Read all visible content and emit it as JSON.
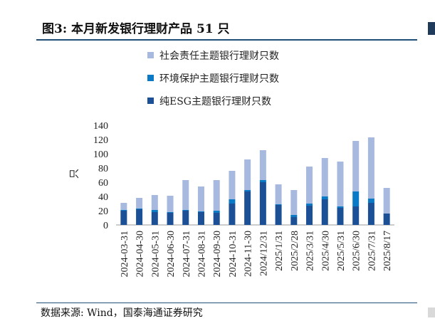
{
  "title": "图3: 本月新发银行理财产品 51 只",
  "source": "数据来源: Wind，国泰海通证券研究",
  "colors": {
    "social": "#a7b9de",
    "environment": "#0a7ac6",
    "esg": "#1b4f96",
    "rule": "#1f4e79"
  },
  "chart_data": {
    "type": "bar",
    "stacked": true,
    "ylabel": "只",
    "ylim": [
      0,
      140
    ],
    "yticks": [
      0,
      20,
      40,
      60,
      80,
      100,
      120,
      140
    ],
    "legend_position": "top",
    "categories": [
      "2024-03-31",
      "2024-04-30",
      "2024-05-31",
      "2024-06-30",
      "2024-07-31",
      "2024-08-31",
      "2024-09-30",
      "2024-10-31",
      "2024-11-30",
      "2024/12/31",
      "2025/1/31",
      "2025/2/28",
      "2025/3/31",
      "2025/4/30",
      "2025/5/31",
      "2025/6/30",
      "2025/7/31",
      "2025/8/17"
    ],
    "series": [
      {
        "name": "纯ESG主题银行理财只数",
        "color_key": "esg",
        "values": [
          20,
          22,
          18,
          17,
          20,
          18,
          17,
          30,
          47,
          60,
          28,
          11,
          27,
          36,
          24,
          26,
          31,
          16
        ]
      },
      {
        "name": "环境保护主题银行理财只数",
        "color_key": "environment",
        "values": [
          1,
          1,
          3,
          1,
          1,
          1,
          3,
          6,
          2,
          3,
          1,
          3,
          3,
          4,
          2,
          21,
          6,
          0
        ]
      },
      {
        "name": "社会责任主题银行理财只数",
        "color_key": "social",
        "values": [
          10,
          15,
          21,
          23,
          42,
          35,
          43,
          40,
          43,
          42,
          28,
          35,
          52,
          54,
          63,
          71,
          86,
          36
        ]
      }
    ]
  }
}
